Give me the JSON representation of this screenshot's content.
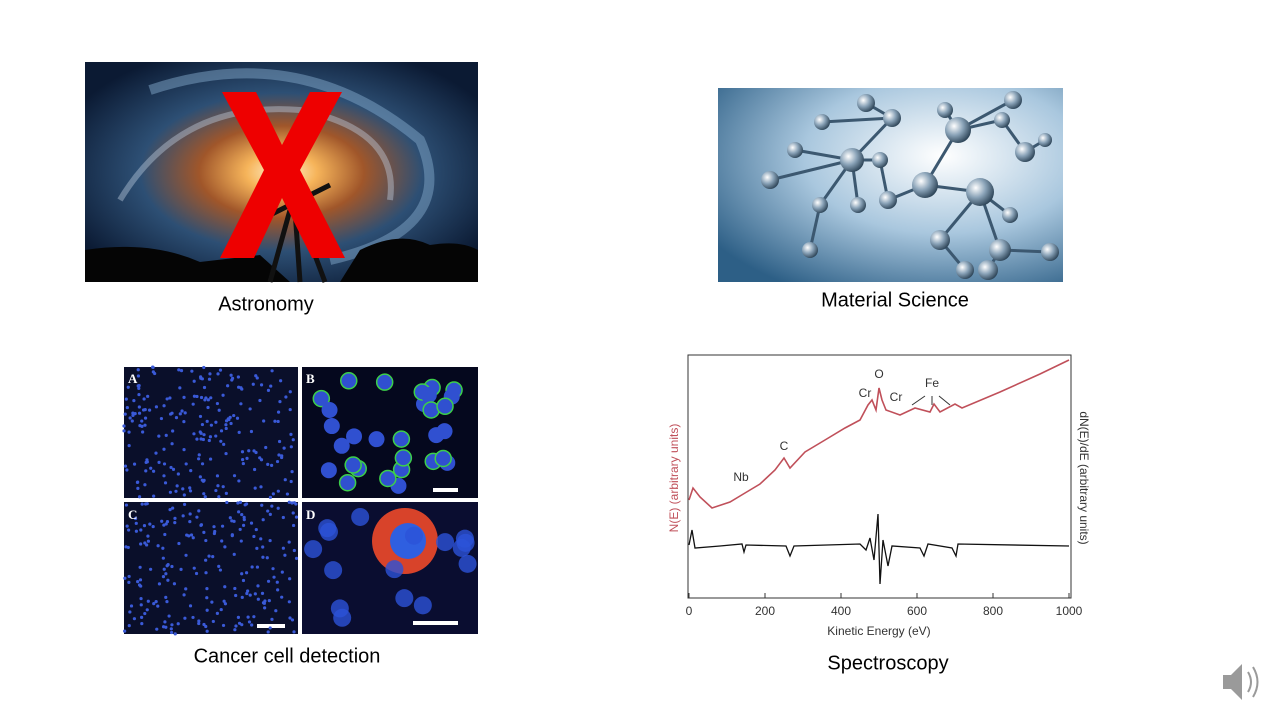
{
  "panels": [
    {
      "caption": "Astronomy"
    },
    {
      "caption": "Material Science"
    },
    {
      "caption": "Cancer cell detection",
      "subpanel_labels": [
        "A",
        "B",
        "C",
        "D"
      ]
    },
    {
      "caption": "Spectroscopy",
      "plot": {
        "x_label": "Kinetic Energy (eV)",
        "y_label": "N(E) (arbitrary units)",
        "y2_label": "dN(E)/dE (arbitrary units)",
        "xlim": [
          0,
          1000
        ],
        "xticks": [
          0,
          200,
          400,
          600,
          800,
          1000
        ],
        "peak_labels": [
          "Nb",
          "C",
          "Cr",
          "O",
          "Cr",
          "Fe"
        ]
      }
    }
  ]
}
